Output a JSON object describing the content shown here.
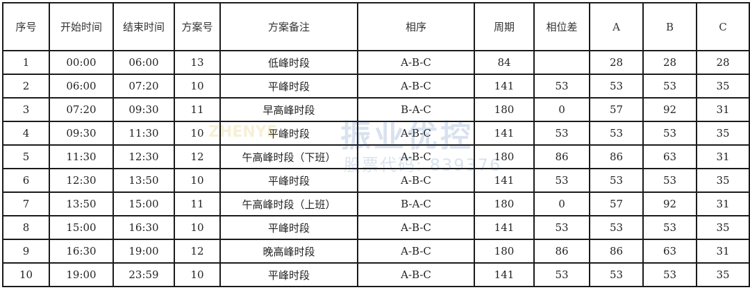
{
  "table": {
    "headers": [
      "序号",
      "开始时间",
      "结束时间",
      "方案号",
      "方案备注",
      "相序",
      "周期",
      "相位差",
      "A",
      "B",
      "C"
    ],
    "rows": [
      [
        "1",
        "00:00",
        "06:00",
        "13",
        "低峰时段",
        "A-B-C",
        "84",
        "",
        "28",
        "28",
        "28"
      ],
      [
        "2",
        "06:00",
        "07:20",
        "10",
        "平峰时段",
        "A-B-C",
        "141",
        "53",
        "53",
        "53",
        "35"
      ],
      [
        "3",
        "07:20",
        "09:30",
        "11",
        "早高峰时段",
        "B-A-C",
        "180",
        "0",
        "57",
        "92",
        "31"
      ],
      [
        "4",
        "09:30",
        "11:30",
        "10",
        "平峰时段",
        "A-B-C",
        "141",
        "53",
        "53",
        "53",
        "35"
      ],
      [
        "5",
        "11:30",
        "12:30",
        "12",
        "午高峰时段（下班）",
        "A-B-C",
        "180",
        "86",
        "86",
        "63",
        "31"
      ],
      [
        "6",
        "12:30",
        "13:50",
        "10",
        "平峰时段",
        "A-B-C",
        "141",
        "53",
        "53",
        "53",
        "35"
      ],
      [
        "7",
        "13:50",
        "15:00",
        "11",
        "午高峰时段（上班）",
        "B-A-C",
        "180",
        "0",
        "57",
        "92",
        "31"
      ],
      [
        "8",
        "15:00",
        "16:30",
        "10",
        "平峰时段",
        "A-B-C",
        "141",
        "53",
        "53",
        "53",
        "35"
      ],
      [
        "9",
        "16:30",
        "19:00",
        "12",
        "晚高峰时段",
        "A-B-C",
        "180",
        "86",
        "86",
        "63",
        "31"
      ],
      [
        "10",
        "19:00",
        "23:59",
        "10",
        "平峰时段",
        "A-B-C",
        "141",
        "53",
        "53",
        "53",
        "35"
      ]
    ]
  },
  "watermark": {
    "logo": "ZHENYE",
    "name": "振业优控",
    "stock": "股票代码: 839376"
  }
}
